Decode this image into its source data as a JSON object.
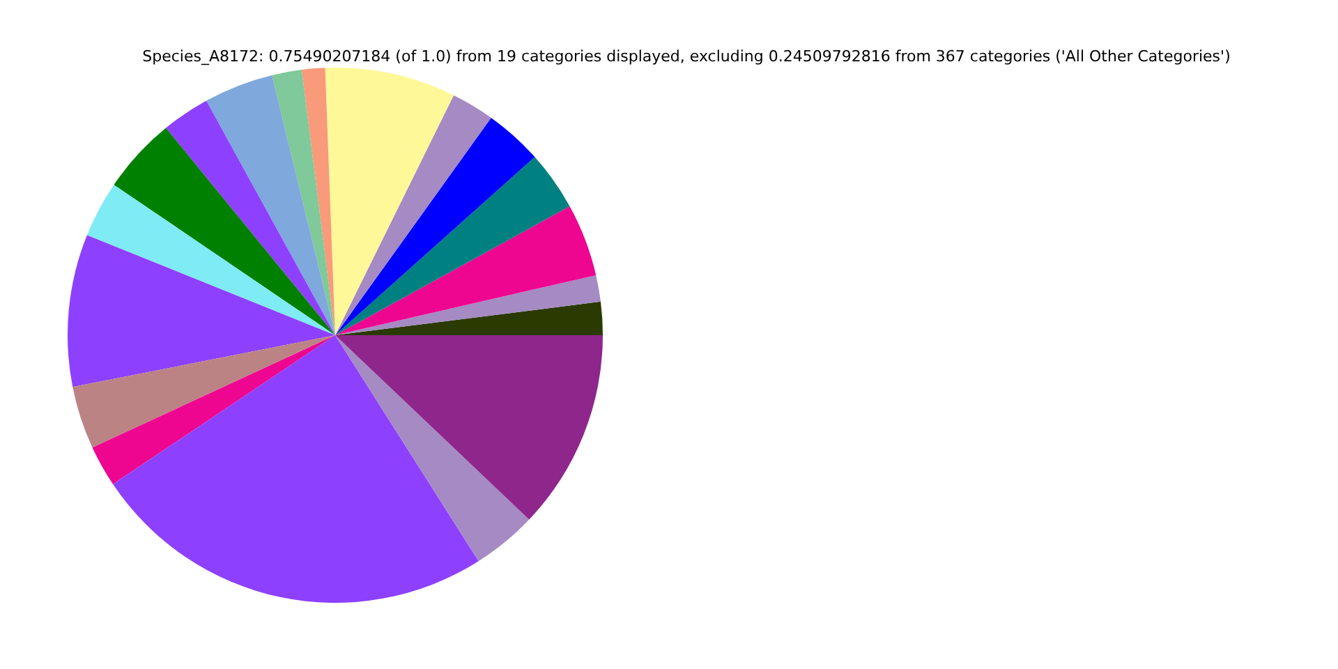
{
  "chart_data": {
    "type": "pie",
    "title": "Species_A8172: 0.75490207184 (of 1.0) from 19 categories displayed, excluding 0.24509792816 from 367 categories ('All Other Categories')",
    "categories": [
      null,
      null,
      null,
      null,
      null,
      null,
      null,
      null,
      null,
      null,
      null,
      null,
      null,
      null,
      null,
      null,
      null,
      null,
      null
    ],
    "values": [
      2.0,
      1.6,
      4.4,
      3.6,
      3.5,
      2.6,
      7.9,
      1.4,
      1.8,
      4.2,
      2.9,
      4.6,
      3.4,
      9.2,
      3.8,
      2.5,
      24.6,
      3.9,
      12.1
    ],
    "colors": [
      "#2b3a00",
      "#a58ac4",
      "#ee0590",
      "#008080",
      "#0000ff",
      "#a58ac4",
      "#fff899",
      "#f99a7a",
      "#7fc99a",
      "#7fa8dc",
      "#8e40ff",
      "#008000",
      "#7febf5",
      "#8e40ff",
      "#bc8385",
      "#ee0590",
      "#8e40ff",
      "#a58ac4",
      "#8f268b"
    ]
  }
}
